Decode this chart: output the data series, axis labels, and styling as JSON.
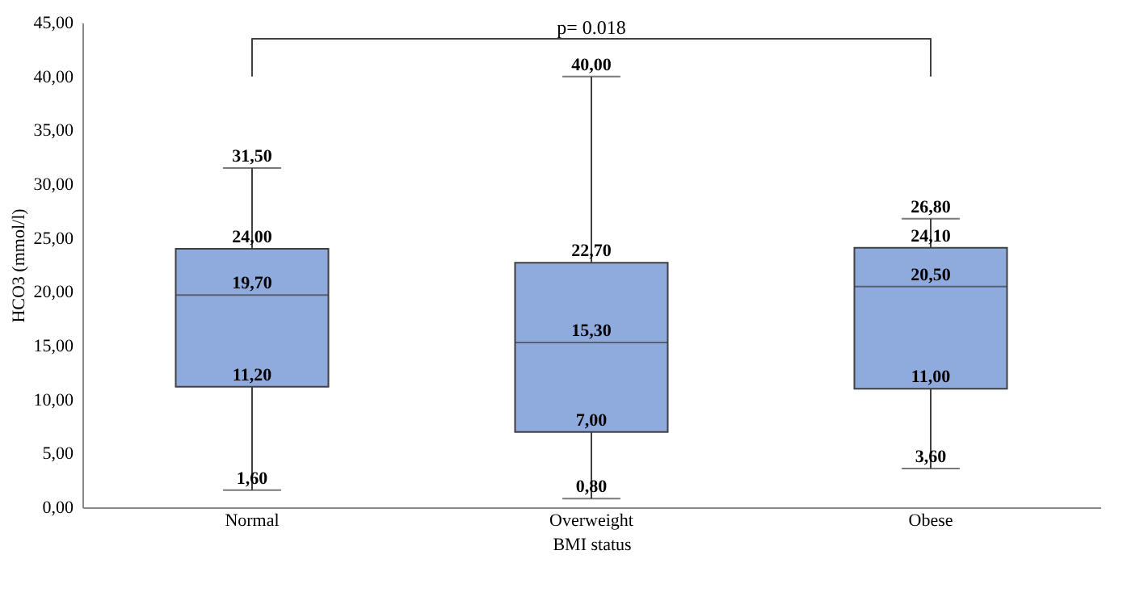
{
  "chart_data": {
    "type": "box",
    "xlabel": "BMI status",
    "ylabel": "HCO3 (mmol/l)",
    "categories": [
      "Normal",
      "Overweight",
      "Obese"
    ],
    "series": [
      {
        "color": "#8faadc",
        "boxes": [
          {
            "low": 1.6,
            "q1": 11.2,
            "median": 19.7,
            "q3": 24.0,
            "high": 31.5
          },
          {
            "low": 0.8,
            "q1": 7.0,
            "median": 15.3,
            "q3": 22.7,
            "high": 40.0
          },
          {
            "low": 3.6,
            "q1": 11.0,
            "median": 20.5,
            "q3": 24.1,
            "high": 26.8
          }
        ]
      }
    ],
    "annotations": [
      "p= 0.018",
      {
        "text": "1,60",
        "x": "Normal",
        "y": 1.6
      },
      {
        "text": "11,20",
        "x": "Normal",
        "y": 11.2
      },
      {
        "text": "19,70",
        "x": "Normal",
        "y": 19.7
      },
      {
        "text": "24,00",
        "x": "Normal",
        "y": 24.0
      },
      {
        "text": "31,50",
        "x": "Normal",
        "y": 31.5
      },
      {
        "text": "0,80",
        "x": "Overweight",
        "y": 0.8
      },
      {
        "text": "7,00",
        "x": "Overweight",
        "y": 7.0
      },
      {
        "text": "15,30",
        "x": "Overweight",
        "y": 15.3
      },
      {
        "text": "22,70",
        "x": "Overweight",
        "y": 22.7
      },
      {
        "text": "40,00",
        "x": "Overweight",
        "y": 40.0
      },
      {
        "text": "3,60",
        "x": "Obese",
        "y": 3.6
      },
      {
        "text": "11,00",
        "x": "Obese",
        "y": 11.0
      },
      {
        "text": "20,50",
        "x": "Obese",
        "y": 20.5
      },
      {
        "text": "24,10",
        "x": "Obese",
        "y": 24.1
      },
      {
        "text": "26,80",
        "x": "Obese",
        "y": 26.8
      }
    ],
    "ylim": [
      0,
      45
    ],
    "yticks": [
      {
        "value": 0,
        "label": "0,00"
      },
      {
        "value": 5,
        "label": "5,00"
      },
      {
        "value": 10,
        "label": "10,00"
      },
      {
        "value": 15,
        "label": "15,00"
      },
      {
        "value": 20,
        "label": "20,00"
      },
      {
        "value": 25,
        "label": "25,00"
      },
      {
        "value": 30,
        "label": "30,00"
      },
      {
        "value": 35,
        "label": "35,00"
      },
      {
        "value": 40,
        "label": "40,00"
      },
      {
        "value": 45,
        "label": "45,00"
      }
    ]
  }
}
